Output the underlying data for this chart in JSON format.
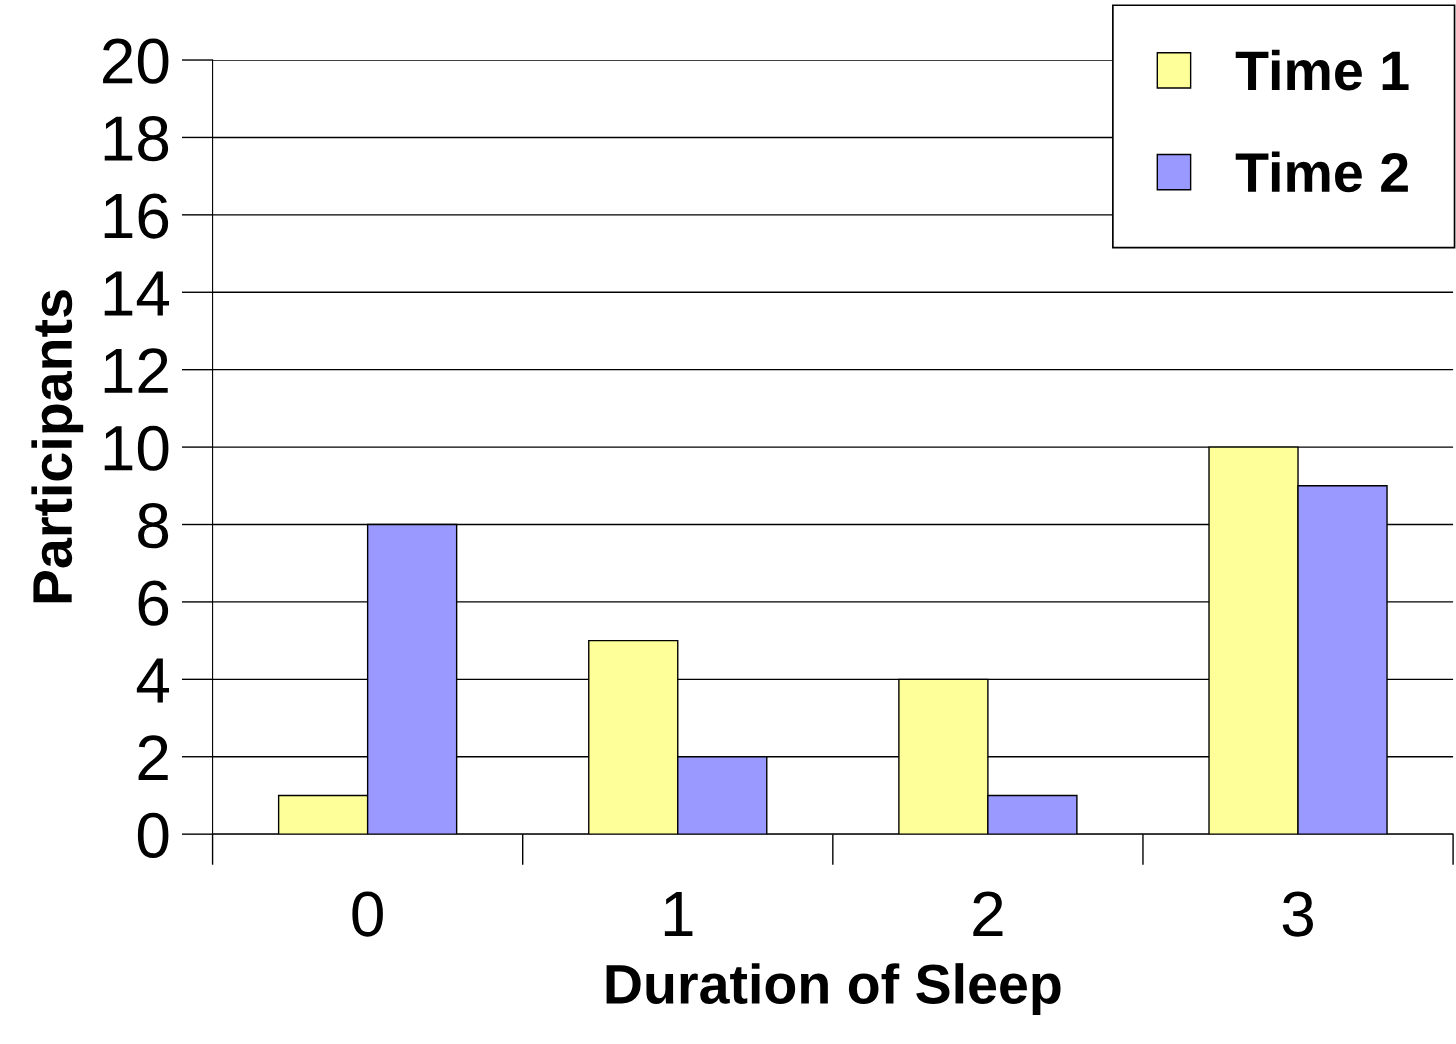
{
  "chart_data": {
    "type": "bar",
    "xlabel": "Duration of Sleep",
    "ylabel": "Participants",
    "categories": [
      "0",
      "1",
      "2",
      "3"
    ],
    "series": [
      {
        "name": "Time 1",
        "color": "#ffff99",
        "values": [
          1,
          5,
          4,
          10
        ]
      },
      {
        "name": "Time 2",
        "color": "#9999ff",
        "values": [
          8,
          2,
          1,
          9
        ]
      }
    ],
    "ylim": [
      0,
      20
    ],
    "yticks": [
      0,
      2,
      4,
      6,
      8,
      10,
      12,
      14,
      16,
      18,
      20
    ],
    "grid": "y",
    "legend": "top right"
  }
}
